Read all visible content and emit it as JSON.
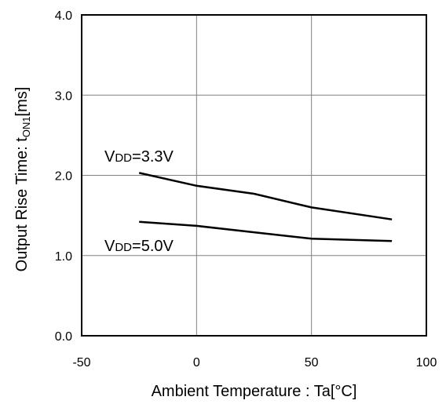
{
  "chart_data": {
    "type": "line",
    "title": "",
    "xlabel": "Ambient Temperature : Ta[°C]",
    "ylabel": {
      "main": "Output Rise Time: t",
      "subscript": "ON1",
      "unit": "[ms]"
    },
    "xlim": [
      -50,
      100
    ],
    "ylim": [
      0,
      4
    ],
    "x_ticks": [
      "-50",
      "0",
      "50",
      "100"
    ],
    "y_ticks": [
      "0.0",
      "1.0",
      "2.0",
      "3.0",
      "4.0"
    ],
    "grid": true,
    "legend": "none",
    "series": [
      {
        "label_main": "V",
        "label_sub": "DD",
        "label_rest": "=3.3V",
        "x": [
          -25,
          0,
          25,
          50,
          85
        ],
        "y": [
          2.03,
          1.87,
          1.77,
          1.6,
          1.45
        ]
      },
      {
        "label_main": "V",
        "label_sub": "DD",
        "label_rest": "=5.0V",
        "x": [
          -25,
          0,
          25,
          50,
          85
        ],
        "y": [
          1.42,
          1.37,
          1.29,
          1.21,
          1.18
        ]
      }
    ],
    "colors": {
      "line": "#000000",
      "grid": "#808080",
      "frame": "#000000"
    }
  }
}
